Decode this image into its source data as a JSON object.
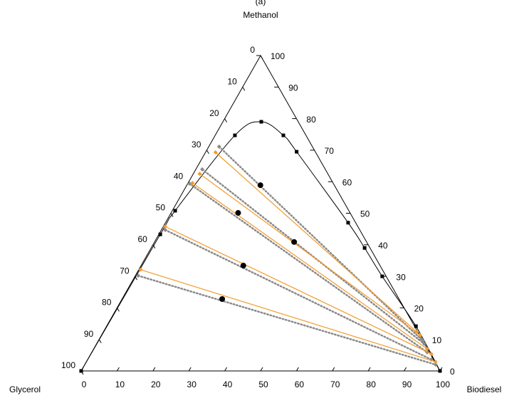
{
  "chart_data": {
    "type": "ternary",
    "title": "(a)",
    "top_label": "Methanol",
    "left_label": "Glycerol",
    "right_label": "Biodiesel",
    "bottom_ticks": [
      0,
      10,
      20,
      30,
      40,
      50,
      60,
      70,
      80,
      90,
      100
    ],
    "right_ticks": [
      0,
      10,
      20,
      30,
      40,
      50,
      60,
      70,
      80,
      90,
      100
    ],
    "left_ticks": [
      0,
      10,
      20,
      30,
      40,
      50,
      60,
      70,
      80,
      90,
      100
    ],
    "binodal": {
      "color": "#000000",
      "biodiesel": [
        0,
        0.4,
        0.8,
        5.5,
        10.7,
        19,
        25.3,
        50.9,
        59.5,
        68.9,
        86.2,
        100
      ],
      "methanol": [
        0,
        43.3,
        50.8,
        74.7,
        79,
        74.7,
        69.5,
        47,
        39,
        30,
        14.2,
        0
      ]
    },
    "tie_lines_experimental": {
      "color": "#f39a2c",
      "lines": [
        {
          "biodiesel": [
            2.8,
            87.3
          ],
          "methanol": [
            69.3,
            12.4
          ]
        },
        {
          "biodiesel": [
            1.8,
            88.8
          ],
          "methanol": [
            62.5,
            11.3
          ]
        },
        {
          "biodiesel": [
            1.2,
            92.9
          ],
          "methanol": [
            59.6,
            7.0
          ]
        },
        {
          "biodiesel": [
            0.5,
            94.9
          ],
          "methanol": [
            45.8,
            5.4
          ]
        },
        {
          "biodiesel": [
            0.5,
            97.3
          ],
          "methanol": [
            32.1,
            2.9
          ]
        }
      ]
    },
    "tie_lines_predicted": {
      "color": "#8a8a8a",
      "lines": [
        {
          "biodiesel": [
            2.9,
            90.5
          ],
          "methanol": [
            71.1,
            9.5
          ]
        },
        {
          "biodiesel": [
            1.8,
            91.3
          ],
          "methanol": [
            63.9,
            8.6
          ]
        },
        {
          "biodiesel": [
            0.5,
            93.5
          ],
          "methanol": [
            59.4,
            5.9
          ]
        },
        {
          "biodiesel": [
            1.1,
            95.8
          ],
          "methanol": [
            44.7,
            3.6
          ]
        },
        {
          "biodiesel": [
            0.8,
            97.8
          ],
          "methanol": [
            30.2,
            2.0
          ]
        }
      ]
    },
    "feed_points": {
      "color": "#000000",
      "biodiesel": [
        20.5,
        18.7,
        38.9,
        28.5,
        27.9
      ],
      "methanol": [
        58.9,
        50.1,
        40.9,
        33.4,
        22.8
      ]
    }
  }
}
